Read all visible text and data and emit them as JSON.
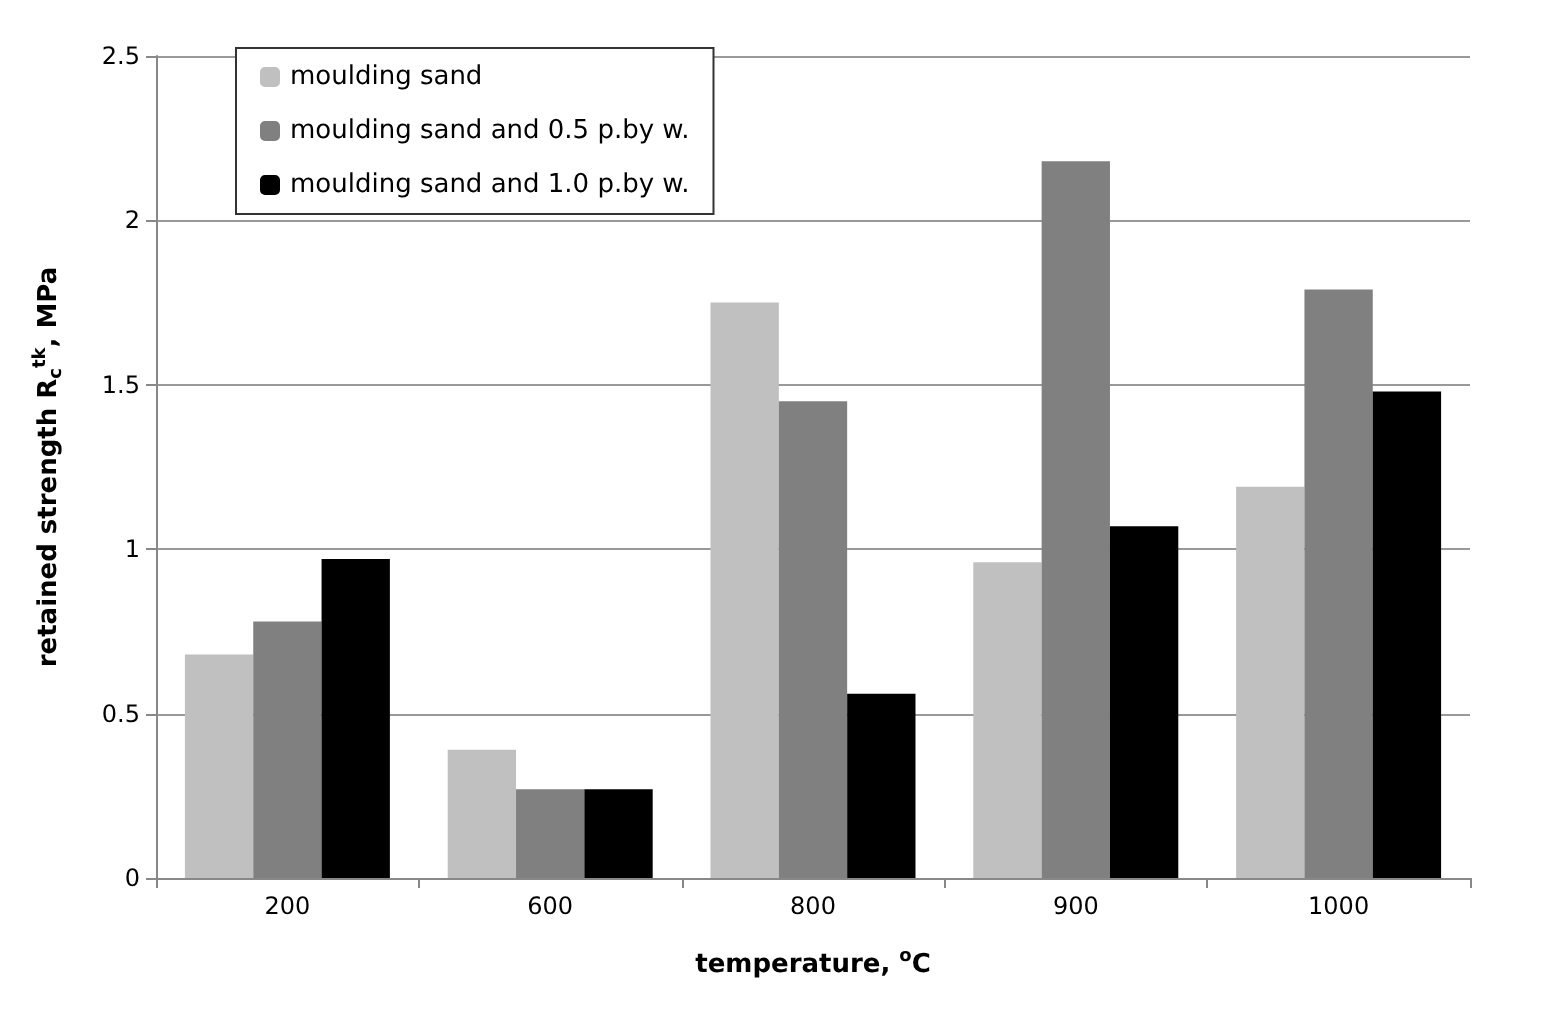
{
  "chart_data": {
    "type": "bar",
    "xlabel": "temperature, $^{o}$C",
    "ylabel": "retained strength R$_{c}$$^{tk}$, MPa",
    "categories": [
      "200",
      "600",
      "800",
      "900",
      "1000"
    ],
    "series": [
      {
        "name": "moulding sand",
        "color": "#c0c0c0",
        "values": [
          0.68,
          0.39,
          1.75,
          0.96,
          1.19
        ]
      },
      {
        "name": "moulding sand and 0.5 p.by w.",
        "color": "#808080",
        "values": [
          0.78,
          0.27,
          1.45,
          2.18,
          1.79
        ]
      },
      {
        "name": "moulding sand and 1.0 p.by w.",
        "color": "#000000",
        "values": [
          0.97,
          0.27,
          0.56,
          1.07,
          1.48
        ]
      }
    ],
    "ylim": [
      0,
      2.5
    ],
    "yticks": [
      0,
      0.5,
      1,
      1.5,
      2,
      2.5
    ],
    "grid": "y",
    "legend": "top left"
  }
}
